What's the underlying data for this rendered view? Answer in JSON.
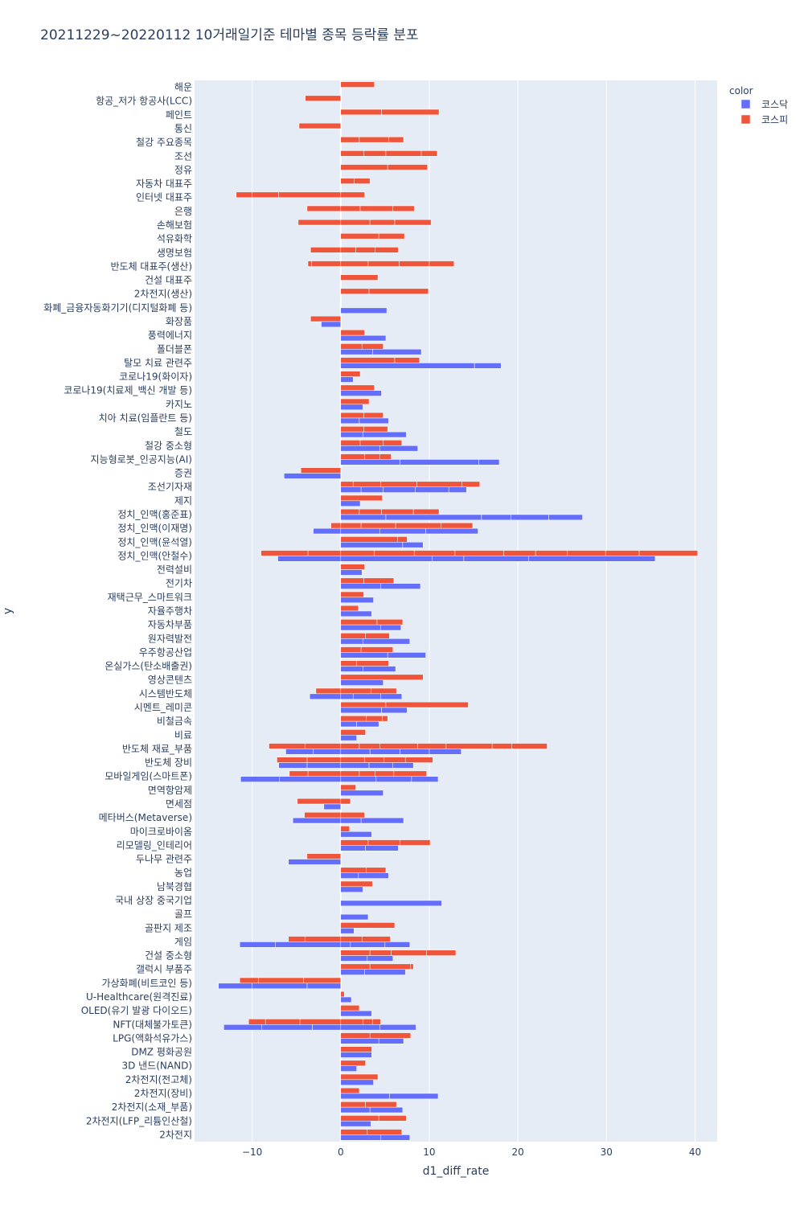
{
  "chart_data": {
    "type": "bar",
    "orientation": "horizontal",
    "barmode": "relative",
    "title": "20211229~20220112 10거래일기준 테마별 종목 등락률 분포",
    "xlabel": "d1_diff_rate",
    "ylabel": "y",
    "xlim": [
      -16.5,
      42.5
    ],
    "xticks": [
      -10,
      0,
      10,
      20,
      30,
      40
    ],
    "grid": true,
    "legend": {
      "title": "color",
      "position": "top-right",
      "entries": [
        {
          "name": "코스닥",
          "color": "#636efa"
        },
        {
          "name": "코스피",
          "color": "#ef553b"
        }
      ]
    },
    "categories": [
      "해운",
      "항공_저가 항공사(LCC)",
      "페인트",
      "통신",
      "철강 주요종목",
      "조선",
      "정유",
      "자동차 대표주",
      "인터넷 대표주",
      "은행",
      "손해보험",
      "석유화학",
      "생명보험",
      "반도체 대표주(생산)",
      "건설 대표주",
      "2차전지(생산)",
      "화폐_금융자동화기기(디지털화폐 등)",
      "화장품",
      "풍력에너지",
      "폴더블폰",
      "탈모 치료 관련주",
      "코로나19(화이자)",
      "코로나19(치료제_백신 개발 등)",
      "카지노",
      "치아 치료(임플란트 등)",
      "철도",
      "철강 중소형",
      "지능형로봇_인공지능(AI)",
      "증권",
      "조선기자재",
      "제지",
      "정치_인맥(홍준표)",
      "정치_인맥(이재명)",
      "정치_인맥(윤석열)",
      "정치_인맥(안철수)",
      "전력설비",
      "전기차",
      "재택근무_스마트워크",
      "자율주행차",
      "자동차부품",
      "원자력발전",
      "우주항공산업",
      "온실가스(탄소배출권)",
      "영상콘텐츠",
      "시스템반도체",
      "시멘트_레미콘",
      "비철금속",
      "비료",
      "반도체 재료_부품",
      "반도체 장비",
      "모바일게임(스마트폰)",
      "면역항암제",
      "면세점",
      "메타버스(Metaverse)",
      "마이크로바이옴",
      "리모델링_인테리어",
      "두나무 관련주",
      "농업",
      "남북경협",
      "국내 상장 중국기업",
      "골프",
      "골판지 제조",
      "게임",
      "건설 중소형",
      "갤럭시 부품주",
      "가상화폐(비트코인 등)",
      "U-Healthcare(원격진료)",
      "OLED(유기 발광 다이오드)",
      "NFT(대체불가토큰)",
      "LPG(액화석유가스)",
      "DMZ 평화공원",
      "3D 낸드(NAND)",
      "2차전지(전고체)",
      "2차전지(장비)",
      "2차전지(소재_부품)",
      "2차전지(LFP_리튬인산철)",
      "2차전지"
    ],
    "series": [
      {
        "name": "코스피",
        "values": [
          [
            3.8
          ],
          [
            -4.0
          ],
          [
            4.6,
            6.5
          ],
          [
            -4.7
          ],
          [
            2.1,
            3.3,
            1.7
          ],
          [
            2.6,
            2.5,
            4.0,
            1.8
          ],
          [
            5.3,
            4.5
          ],
          [
            1.5,
            1.8
          ],
          [
            2.7,
            -7.0,
            -3.0,
            -1.8
          ],
          [
            2.2,
            3.7,
            2.4,
            -3.8
          ],
          [
            3.3,
            2.8,
            4.1,
            -4.8
          ],
          [
            4.3,
            2.9
          ],
          [
            1.7,
            2.2,
            2.6,
            -3.4
          ],
          [
            3.1,
            3.5,
            3.4,
            2.8,
            -3.3,
            -0.4
          ],
          [
            4.2
          ],
          [
            3.2,
            6.7
          ],
          [],
          [
            -3.4
          ],
          [
            2.7
          ],
          [
            2.4,
            2.4
          ],
          [
            6.1,
            2.8
          ],
          [
            2.2
          ],
          [
            3.8
          ],
          [
            3.2
          ],
          [
            2.6,
            2.2
          ],
          [
            2.6,
            2.7
          ],
          [
            2.2,
            2.6,
            2.1
          ],
          [
            2.7,
            1.7,
            1.3
          ],
          [
            -4.5
          ],
          [
            1.4,
            3.1,
            4.1,
            5.1,
            2.0
          ],
          [
            4.7
          ],
          [
            2.1,
            2.5,
            3.6,
            2.9
          ],
          [
            2.3,
            3.9,
            5.1,
            3.6,
            -1.1
          ],
          [
            6.4,
            1.1
          ],
          [
            3.8,
            4.5,
            4.6,
            5.5,
            3.6,
            3.6,
            4.3,
            3.8,
            6.6,
            -3.7,
            -5.3
          ],
          [
            2.7
          ],
          [
            2.6,
            3.4
          ],
          [
            2.6
          ],
          [
            2.0
          ],
          [
            4.1,
            2.9
          ],
          [
            2.8,
            2.7
          ],
          [
            2.3,
            3.6
          ],
          [
            1.8,
            3.6
          ],
          [
            9.3
          ],
          [
            3.4,
            2.9,
            -2.8
          ],
          [
            5.1,
            9.3
          ],
          [
            2.9,
            1.8,
            0.6
          ],
          [
            2.8
          ],
          [
            2.1,
            2.3,
            4.3,
            3.2,
            5.2,
            2.2,
            4.0,
            -4.0,
            -4.1
          ],
          [
            2.7,
            2.2,
            2.4,
            3.1,
            -3.8,
            -3.4
          ],
          [
            2.1,
            1.8,
            2.1,
            3.7,
            -3.7,
            -2.1
          ],
          [
            1.7
          ],
          [
            1.1,
            -4.9
          ],
          [
            2.7,
            -4.1
          ],
          [
            1.0
          ],
          [
            3.1,
            3.6,
            3.4
          ],
          [
            -3.8
          ],
          [
            2.9,
            2.2
          ],
          [
            3.6
          ],
          [],
          [],
          [
            6.1
          ],
          [
            2.4,
            3.2,
            -4.0,
            -1.9
          ],
          [
            3.3,
            2.4,
            4.0,
            3.3
          ],
          [
            3.3,
            4.6,
            0.3
          ],
          [
            -4.2,
            -5.1,
            -2.1
          ],
          [
            0.4
          ],
          [
            2.1
          ],
          [
            2.5,
            1.1,
            0.9,
            -4.6,
            -3.9,
            -1.9
          ],
          [
            3.3,
            4.6
          ],
          [
            3.5
          ],
          [
            2.8
          ],
          [
            4.2
          ],
          [
            2.1
          ],
          [
            2.8,
            3.5
          ],
          [
            4.3,
            3.1
          ],
          [
            3.0,
            3.9
          ]
        ]
      },
      {
        "name": "코스닥",
        "values": [
          [],
          [],
          [],
          [],
          [],
          [],
          [],
          [],
          [],
          [],
          [],
          [],
          [],
          [],
          [],
          [],
          [
            5.2
          ],
          [
            -2.2
          ],
          [
            5.1
          ],
          [
            3.6,
            5.5
          ],
          [
            15.1,
            3.0
          ],
          [
            1.4
          ],
          [
            4.6
          ],
          [
            2.5
          ],
          [
            2.1,
            3.3
          ],
          [
            2.5,
            4.9
          ],
          [
            4.4,
            4.3
          ],
          [
            6.7,
            8.9,
            2.3
          ],
          [
            -6.4
          ],
          [
            2.3,
            2.5,
            3.6,
            3.8,
            2.0
          ],
          [
            2.2
          ],
          [
            5.1,
            10.8,
            3.3,
            4.3,
            3.8
          ],
          [
            -3.1,
            4.4,
            5.2,
            5.9
          ],
          [
            7.0,
            2.3
          ],
          [
            10.3,
            3.6,
            7.3,
            14.3,
            -7.1
          ],
          [
            2.4
          ],
          [
            4.5,
            4.5
          ],
          [
            3.7
          ],
          [
            3.5
          ],
          [
            4.5,
            2.3
          ],
          [
            2.5,
            5.3
          ],
          [
            5.3,
            4.3
          ],
          [
            2.5,
            3.7
          ],
          [
            4.8
          ],
          [
            1.4,
            3.1,
            2.4,
            -3.5
          ],
          [
            4.6,
            2.9
          ],
          [
            1.8,
            2.5
          ],
          [
            1.8
          ],
          [
            3.3,
            3.4,
            3.3,
            3.6,
            -3.1,
            -3.1
          ],
          [
            3.2,
            2.7,
            2.3,
            -3.8,
            -3.2
          ],
          [
            4.0,
            4.0,
            3.0,
            -6.9,
            -4.4
          ],
          [
            4.8
          ],
          [
            -1.9
          ],
          [
            2.3,
            4.8,
            -5.4
          ],
          [
            3.5
          ],
          [
            2.8,
            3.7
          ],
          [
            -5.9
          ],
          [
            2.0,
            3.4
          ],
          [
            2.5
          ],
          [
            11.4
          ],
          [
            3.1
          ],
          [
            1.5
          ],
          [
            1.1,
            3.9,
            2.8,
            -7.4,
            -4.0
          ],
          [
            3.0,
            2.9
          ],
          [
            2.7,
            4.6
          ],
          [
            -3.8,
            -6.2,
            -3.8
          ],
          [
            1.2
          ],
          [
            3.5
          ],
          [
            4.4,
            4.1,
            -3.2,
            -5.7,
            -4.3
          ],
          [
            4.3,
            2.8
          ],
          [
            3.5
          ],
          [
            1.8
          ],
          [
            3.7
          ],
          [
            5.5,
            5.5
          ],
          [
            3.3,
            3.7
          ],
          [
            3.4
          ],
          [
            4.5,
            3.3
          ]
        ]
      }
    ]
  }
}
